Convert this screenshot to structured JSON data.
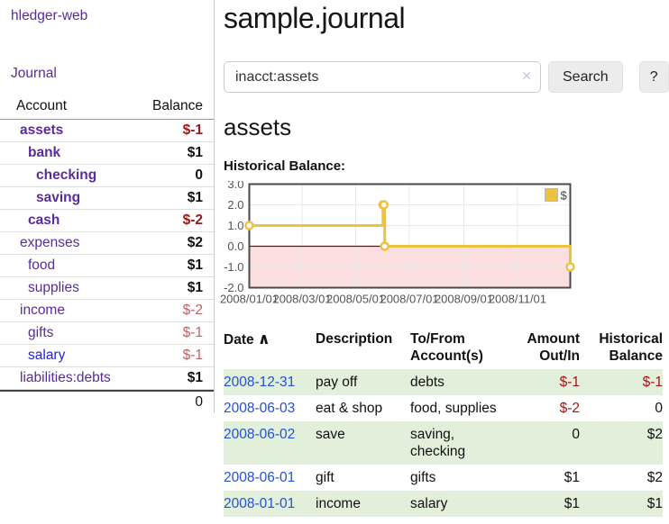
{
  "app": {
    "brand": "hledger-web"
  },
  "sidebar": {
    "journal_link": "Journal",
    "header": {
      "account": "Account",
      "balance": "Balance"
    },
    "accounts": [
      {
        "name": "assets",
        "balance": "$-1"
      },
      {
        "name": "bank",
        "balance": "$1"
      },
      {
        "name": "checking",
        "balance": "0"
      },
      {
        "name": "saving",
        "balance": "$1"
      },
      {
        "name": "cash",
        "balance": "$-2"
      },
      {
        "name": "expenses",
        "balance": "$2"
      },
      {
        "name": "food",
        "balance": "$1"
      },
      {
        "name": "supplies",
        "balance": "$1"
      },
      {
        "name": "income",
        "balance": "$-2"
      },
      {
        "name": "gifts",
        "balance": "$-1"
      },
      {
        "name": "salary",
        "balance": "$-1"
      },
      {
        "name": "liabilities:debts",
        "balance": "$1"
      }
    ],
    "total": "0"
  },
  "main": {
    "title": "sample.journal",
    "search": {
      "value": "inacct:assets",
      "clear_icon": "✕",
      "button_label": "Search",
      "help_label": "?"
    },
    "account_heading": "assets",
    "chart_label": "Historical Balance:"
  },
  "chart_data": {
    "type": "line",
    "step": true,
    "title": "Historical Balance:",
    "series": [
      {
        "name": "$",
        "color": "#EDC240",
        "points": [
          [
            "2008/01/01",
            1.0
          ],
          [
            "2008/06/01",
            2.0
          ],
          [
            "2008/06/02",
            2.0
          ],
          [
            "2008/06/03",
            0.0
          ],
          [
            "2008/12/31",
            -1.0
          ]
        ]
      }
    ],
    "xrange": [
      "2008/01/01",
      "2008/12/31"
    ],
    "ylim": [
      -2.0,
      3.0
    ],
    "yticks": [
      3.0,
      2.0,
      1.0,
      0.0,
      -1.0,
      -2.0
    ],
    "xticks": [
      "2008/01/01",
      "2008/03/01",
      "2008/05/01",
      "2008/07/01",
      "2008/09/01",
      "2008/11/01"
    ],
    "legend": {
      "label": "$",
      "position": "top-right"
    },
    "grid": true,
    "zero_line_color": "#8B0000",
    "negative_fill": "#FBDFDF",
    "border_color": "#4A4A4A",
    "gridline_color": "#E8E8E8"
  },
  "register": {
    "columns": [
      {
        "label": "Date",
        "sort_indicator": "∧"
      },
      {
        "label": "Description"
      },
      {
        "line1": "To/From",
        "line2": "Account(s)"
      },
      {
        "line1": "Amount",
        "line2": "Out/In"
      },
      {
        "line1": "Historical",
        "line2": "Balance"
      }
    ],
    "rows": [
      {
        "date": "2008-12-31",
        "description": "pay off",
        "accounts": "debts",
        "amount": "$-1",
        "balance": "$-1"
      },
      {
        "date": "2008-06-03",
        "description": "eat & shop",
        "accounts": "food, supplies",
        "amount": "$-2",
        "balance": "0"
      },
      {
        "date": "2008-06-02",
        "description": "save",
        "accounts": "saving, checking",
        "amount": "0",
        "balance": "$2"
      },
      {
        "date": "2008-06-01",
        "description": "gift",
        "accounts": "gifts",
        "amount": "$1",
        "balance": "$2"
      },
      {
        "date": "2008-01-01",
        "description": "income",
        "accounts": "salary",
        "amount": "$1",
        "balance": "$1"
      }
    ]
  }
}
